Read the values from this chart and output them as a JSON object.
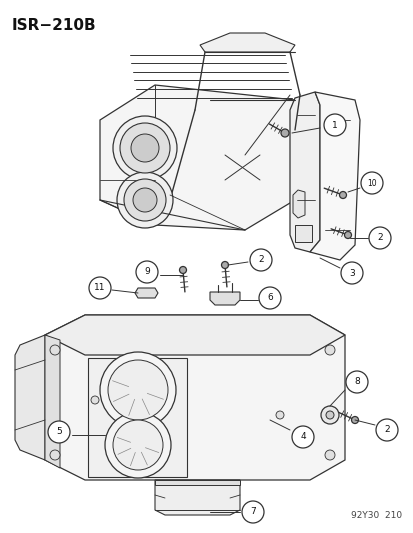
{
  "title": "ISR−210B",
  "footer": "92Y30  210",
  "bg_color": "#ffffff",
  "line_color": "#333333",
  "label_color": "#111111",
  "fig_w": 4.14,
  "fig_h": 5.33,
  "dpi": 100
}
